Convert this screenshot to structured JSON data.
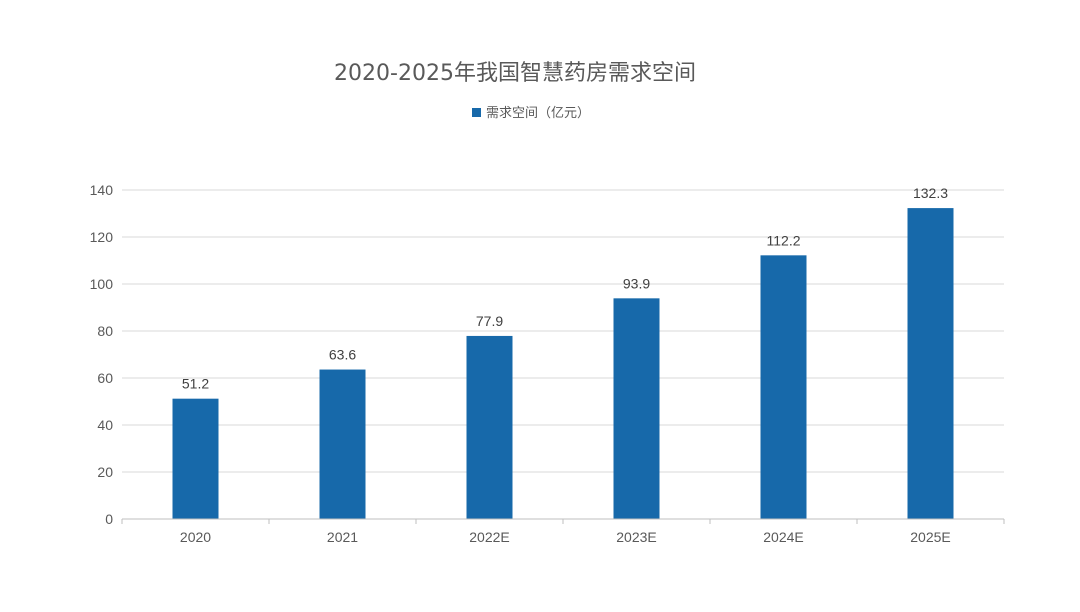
{
  "chart_data": {
    "type": "bar",
    "title": "2020-2025年我国智慧药房需求空间",
    "xlabel": "",
    "ylabel": "",
    "categories": [
      "2020",
      "2021",
      "2022E",
      "2023E",
      "2024E",
      "2025E"
    ],
    "series": [
      {
        "name": "需求空间（亿元）",
        "values": [
          51.2,
          63.6,
          77.9,
          93.9,
          112.2,
          132.3
        ],
        "color": "#1769AA"
      }
    ],
    "ylim": [
      0,
      140
    ],
    "yticks": [
      "0",
      "20",
      "40",
      "60",
      "80",
      "100",
      "120",
      "140"
    ],
    "data_labels": [
      "51.2",
      "63.6",
      "77.9",
      "93.9",
      "112.2",
      "132.3"
    ],
    "grid": true,
    "legend_position": "top-center"
  }
}
